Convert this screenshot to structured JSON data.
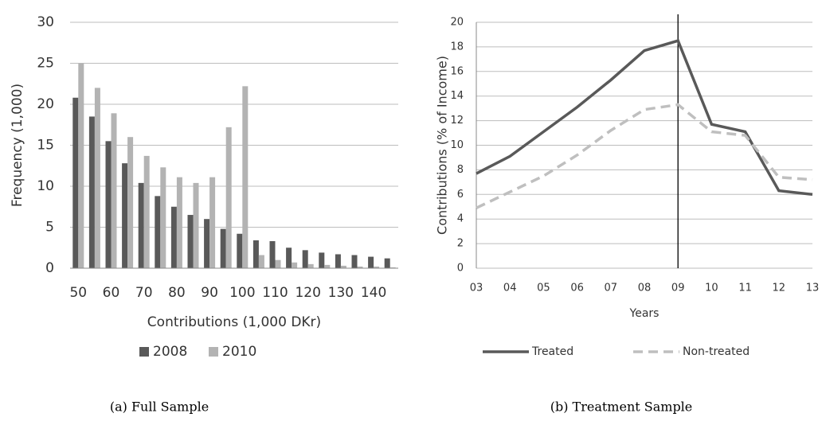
{
  "chart_data": [
    {
      "type": "bar",
      "caption": "(a) Full Sample",
      "xlabel": "Contributions (1,000 DKr)",
      "ylabel": "Frequency (1,000)",
      "categories": [
        "50",
        null,
        "60",
        null,
        "70",
        null,
        "80",
        null,
        "90",
        null,
        "100",
        null,
        "110",
        null,
        "120",
        null,
        "130",
        null,
        "140",
        null
      ],
      "series": [
        {
          "name": "2008",
          "color": "#595959",
          "values": [
            20.8,
            18.5,
            15.5,
            12.8,
            10.4,
            8.8,
            7.5,
            6.5,
            6.0,
            4.8,
            4.2,
            3.4,
            3.3,
            2.5,
            2.2,
            1.9,
            1.7,
            1.6,
            1.4,
            1.2
          ]
        },
        {
          "name": "2010",
          "color": "#b3b3b3",
          "values": [
            25.0,
            22.0,
            18.9,
            16.0,
            13.7,
            12.3,
            11.1,
            10.4,
            11.1,
            17.2,
            22.2,
            1.6,
            1.0,
            0.7,
            0.5,
            0.4,
            0.3,
            0.2,
            0.2,
            0.1
          ]
        }
      ],
      "ylim": [
        0,
        30
      ],
      "yticks": [
        0,
        5,
        10,
        15,
        20,
        25,
        30
      ],
      "grid": true,
      "legend": "bottom"
    },
    {
      "type": "line",
      "caption": "(b) Treatment Sample",
      "xlabel": "Years",
      "ylabel": "Contributions (% of Income)",
      "categories": [
        "03",
        "04",
        "05",
        "06",
        "07",
        "08",
        "09",
        "10",
        "11",
        "12",
        "13"
      ],
      "series": [
        {
          "name": "Treated",
          "color": "#595959",
          "style": "solid",
          "values": [
            7.7,
            9.1,
            11.1,
            13.1,
            15.3,
            17.7,
            18.5,
            11.7,
            11.1,
            6.3,
            6.0
          ]
        },
        {
          "name": "Non-treated",
          "color": "#bfbfbf",
          "style": "dashed",
          "values": [
            4.9,
            6.2,
            7.5,
            9.2,
            11.2,
            12.9,
            13.3,
            11.1,
            10.8,
            7.4,
            7.2
          ]
        }
      ],
      "vline": "09",
      "ylim": [
        0,
        20
      ],
      "yticks": [
        0,
        2,
        4,
        6,
        8,
        10,
        12,
        14,
        16,
        18,
        20
      ],
      "grid": true,
      "legend": "bottom"
    }
  ]
}
